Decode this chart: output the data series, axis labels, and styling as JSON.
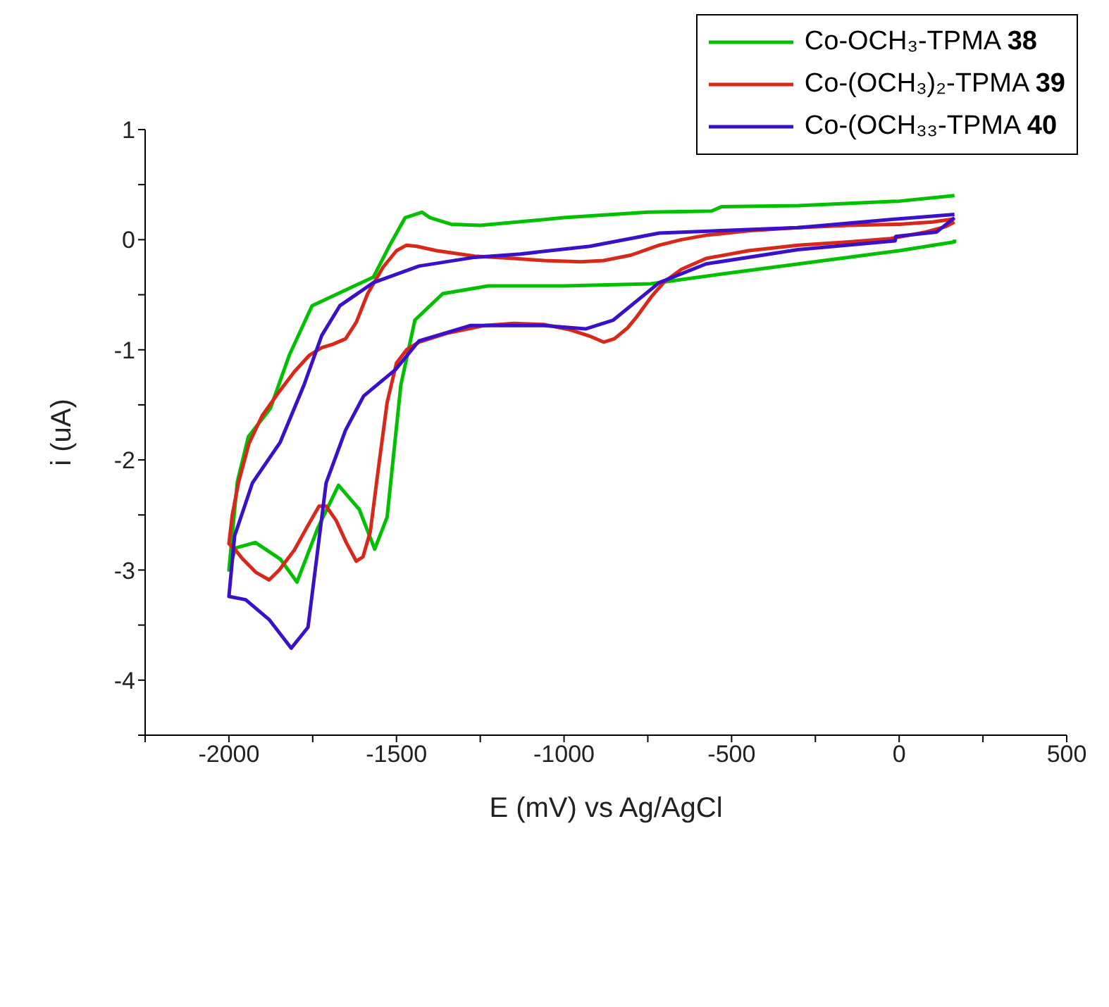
{
  "chart_data": {
    "type": "line",
    "xlabel": "E (mV) vs Ag/AgCl",
    "ylabel": "i (uA)",
    "xlim": [
      -2250,
      500
    ],
    "ylim": [
      -4.5,
      1
    ],
    "xticks": [
      {
        "value": -2250,
        "label": null
      },
      -2000,
      {
        "value": -1750,
        "label": null
      },
      -1500,
      {
        "value": -1250,
        "label": null
      },
      -1000,
      {
        "value": -750,
        "label": null
      },
      -500,
      {
        "value": -250,
        "label": null
      },
      0,
      {
        "value": 250,
        "label": null
      },
      500
    ],
    "yticks": [
      {
        "value": -4.5,
        "label": null
      },
      -4,
      {
        "value": -3.5,
        "label": null
      },
      -3,
      {
        "value": -2.5,
        "label": null
      },
      -2,
      {
        "value": -1.5,
        "label": null
      },
      -1,
      {
        "value": -0.5,
        "label": null
      },
      0,
      {
        "value": 0.5,
        "label": null
      },
      1
    ],
    "grid": false,
    "legend": "top right",
    "marker": "none",
    "line_style": "solid",
    "series": [
      {
        "name": "Co-OCH₃-TPMA 38",
        "color": "#00c000",
        "x": [
          165,
          0,
          -300,
          -530,
          -560,
          -750,
          -1000,
          -1250,
          -1337,
          -1400,
          -1424,
          -1474,
          -1520,
          -1569,
          -1640,
          -1752,
          -1820,
          -1876,
          -1942,
          -1975,
          -2000,
          -1980,
          -1921,
          -1847,
          -1797,
          -1735,
          -1673,
          -1611,
          -1565,
          -1528,
          -1487,
          -1445,
          -1362,
          -1226,
          -1000,
          -741,
          -500,
          -200,
          0,
          165,
          165
        ],
        "values": [
          0.4,
          0.35,
          0.31,
          0.3,
          0.26,
          0.25,
          0.2,
          0.13,
          0.14,
          0.2,
          0.25,
          0.2,
          -0.05,
          -0.34,
          -0.44,
          -0.6,
          -1.05,
          -1.53,
          -1.79,
          -2.2,
          -3.0,
          -2.8,
          -2.75,
          -2.9,
          -3.11,
          -2.62,
          -2.23,
          -2.45,
          -2.81,
          -2.52,
          -1.32,
          -0.73,
          -0.49,
          -0.42,
          -0.42,
          -0.4,
          -0.3,
          -0.18,
          -0.1,
          -0.02,
          0.0
        ]
      },
      {
        "name": "Co-(OCH₃)₂-TPMA 39",
        "color": "#d8281a",
        "x": [
          165,
          100,
          0,
          -150,
          -302,
          -450,
          -576,
          -650,
          -716,
          -800,
          -882,
          -950,
          -1060,
          -1150,
          -1267,
          -1380,
          -1440,
          -1470,
          -1500,
          -1540,
          -1586,
          -1620,
          -1652,
          -1690,
          -1723,
          -1760,
          -1805,
          -1850,
          -1901,
          -1940,
          -1971,
          -1990,
          -2000,
          -1980,
          -1959,
          -1920,
          -1880,
          -1850,
          -1805,
          -1765,
          -1731,
          -1710,
          -1680,
          -1650,
          -1620,
          -1600,
          -1578,
          -1555,
          -1528,
          -1500,
          -1470,
          -1433,
          -1350,
          -1238,
          -1150,
          -1060,
          -980,
          -920,
          -882,
          -850,
          -810,
          -783,
          -740,
          -700,
          -650,
          -576,
          -450,
          -302,
          -150,
          -25,
          80,
          140,
          165
        ],
        "values": [
          0.19,
          0.16,
          0.14,
          0.13,
          0.11,
          0.08,
          0.04,
          0.0,
          -0.05,
          -0.14,
          -0.19,
          -0.2,
          -0.19,
          -0.17,
          -0.15,
          -0.1,
          -0.06,
          -0.05,
          -0.1,
          -0.25,
          -0.49,
          -0.75,
          -0.9,
          -0.95,
          -0.98,
          -1.05,
          -1.2,
          -1.38,
          -1.6,
          -1.85,
          -2.2,
          -2.5,
          -2.76,
          -2.82,
          -2.9,
          -3.02,
          -3.09,
          -3.0,
          -2.82,
          -2.6,
          -2.42,
          -2.42,
          -2.55,
          -2.75,
          -2.92,
          -2.88,
          -2.65,
          -2.1,
          -1.48,
          -1.12,
          -1.0,
          -0.93,
          -0.85,
          -0.78,
          -0.76,
          -0.77,
          -0.82,
          -0.88,
          -0.93,
          -0.9,
          -0.8,
          -0.7,
          -0.52,
          -0.38,
          -0.27,
          -0.17,
          -0.1,
          -0.05,
          -0.02,
          0.01,
          0.07,
          0.12,
          0.16
        ]
      },
      {
        "name": "Co-(OCH₃₃-TPMA 40",
        "color": "#3a10c8",
        "x": [
          165,
          0,
          -302,
          -716,
          -923,
          -1130,
          -1267,
          -1433,
          -1569,
          -1669,
          -1723,
          -1776,
          -1847,
          -1930,
          -1983,
          -2000,
          -1950,
          -1880,
          -1814,
          -1764,
          -1710,
          -1652,
          -1598,
          -1503,
          -1433,
          -1280,
          -1060,
          -936,
          -853,
          -716,
          -576,
          -302,
          -12,
          -10,
          112,
          165
        ],
        "values": [
          0.23,
          0.19,
          0.11,
          0.06,
          -0.06,
          -0.13,
          -0.16,
          -0.24,
          -0.39,
          -0.6,
          -0.87,
          -1.32,
          -1.84,
          -2.21,
          -2.69,
          -3.24,
          -3.27,
          -3.45,
          -3.71,
          -3.52,
          -2.21,
          -1.73,
          -1.42,
          -1.18,
          -0.92,
          -0.78,
          -0.78,
          -0.81,
          -0.73,
          -0.39,
          -0.22,
          -0.09,
          -0.01,
          0.03,
          0.07,
          0.2
        ]
      }
    ]
  }
}
